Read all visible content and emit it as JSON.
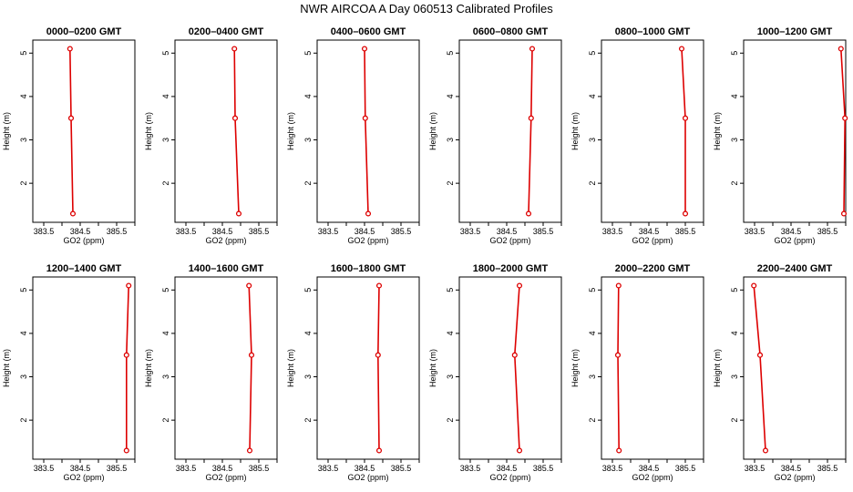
{
  "figure": {
    "title": "NWR AIRCOA A  Day 060513  Calibrated Profiles"
  },
  "chart_data": [
    {
      "type": "line",
      "title": "0000–0200 GMT",
      "xlabel": "GO2 (ppm)",
      "ylabel": "Height (m)",
      "xlim": [
        383.2,
        386.0
      ],
      "ylim": [
        1.1,
        5.3
      ],
      "xticks": [
        383.5,
        384.0,
        384.5,
        385.0,
        385.5,
        386.0
      ],
      "xtick_labels": [
        "383.5",
        "",
        "384.5",
        "",
        "385.5",
        ""
      ],
      "yticks": [
        2,
        3,
        4,
        5
      ],
      "ytick_labels": [
        "2",
        "3",
        "4",
        "5"
      ],
      "points": [
        {
          "x": 384.3,
          "y": 1.3
        },
        {
          "x": 384.25,
          "y": 3.5
        },
        {
          "x": 384.22,
          "y": 5.1
        }
      ]
    },
    {
      "type": "line",
      "title": "0200–0400 GMT",
      "xlabel": "GO2 (ppm)",
      "ylabel": "Height (m)",
      "xlim": [
        383.2,
        386.0
      ],
      "ylim": [
        1.1,
        5.3
      ],
      "xticks": [
        383.5,
        384.0,
        384.5,
        385.0,
        385.5,
        386.0
      ],
      "xtick_labels": [
        "383.5",
        "",
        "384.5",
        "",
        "385.5",
        ""
      ],
      "yticks": [
        2,
        3,
        4,
        5
      ],
      "ytick_labels": [
        "2",
        "3",
        "4",
        "5"
      ],
      "points": [
        {
          "x": 384.95,
          "y": 1.3
        },
        {
          "x": 384.85,
          "y": 3.5
        },
        {
          "x": 384.83,
          "y": 5.1
        }
      ]
    },
    {
      "type": "line",
      "title": "0400–0600 GMT",
      "xlabel": "GO2 (ppm)",
      "ylabel": "Height (m)",
      "xlim": [
        383.2,
        386.0
      ],
      "ylim": [
        1.1,
        5.3
      ],
      "xticks": [
        383.5,
        384.0,
        384.5,
        385.0,
        385.5,
        386.0
      ],
      "xtick_labels": [
        "383.5",
        "",
        "384.5",
        "",
        "385.5",
        ""
      ],
      "yticks": [
        2,
        3,
        4,
        5
      ],
      "ytick_labels": [
        "2",
        "3",
        "4",
        "5"
      ],
      "points": [
        {
          "x": 384.6,
          "y": 1.3
        },
        {
          "x": 384.52,
          "y": 3.5
        },
        {
          "x": 384.5,
          "y": 5.1
        }
      ]
    },
    {
      "type": "line",
      "title": "0600–0800 GMT",
      "xlabel": "GO2 (ppm)",
      "ylabel": "Height (m)",
      "xlim": [
        383.2,
        386.0
      ],
      "ylim": [
        1.1,
        5.3
      ],
      "xticks": [
        383.5,
        384.0,
        384.5,
        385.0,
        385.5,
        386.0
      ],
      "xtick_labels": [
        "383.5",
        "",
        "384.5",
        "",
        "385.5",
        ""
      ],
      "yticks": [
        2,
        3,
        4,
        5
      ],
      "ytick_labels": [
        "2",
        "3",
        "4",
        "5"
      ],
      "points": [
        {
          "x": 385.1,
          "y": 1.3
        },
        {
          "x": 385.17,
          "y": 3.5
        },
        {
          "x": 385.2,
          "y": 5.1
        }
      ]
    },
    {
      "type": "line",
      "title": "0800–1000 GMT",
      "xlabel": "GO2 (ppm)",
      "ylabel": "Height (m)",
      "xlim": [
        383.2,
        386.0
      ],
      "ylim": [
        1.1,
        5.3
      ],
      "xticks": [
        383.5,
        384.0,
        384.5,
        385.0,
        385.5,
        386.0
      ],
      "xtick_labels": [
        "383.5",
        "",
        "384.5",
        "",
        "385.5",
        ""
      ],
      "yticks": [
        2,
        3,
        4,
        5
      ],
      "ytick_labels": [
        "2",
        "3",
        "4",
        "5"
      ],
      "points": [
        {
          "x": 385.5,
          "y": 1.3
        },
        {
          "x": 385.5,
          "y": 3.5
        },
        {
          "x": 385.4,
          "y": 5.1
        }
      ]
    },
    {
      "type": "line",
      "title": "1000–1200 GMT",
      "xlabel": "GO2 (ppm)",
      "ylabel": "Height (m)",
      "xlim": [
        383.2,
        386.0
      ],
      "ylim": [
        1.1,
        5.3
      ],
      "xticks": [
        383.5,
        384.0,
        384.5,
        385.0,
        385.5,
        386.0
      ],
      "xtick_labels": [
        "383.5",
        "",
        "384.5",
        "",
        "385.5",
        ""
      ],
      "yticks": [
        2,
        3,
        4,
        5
      ],
      "ytick_labels": [
        "2",
        "3",
        "4",
        "5"
      ],
      "points": [
        {
          "x": 385.95,
          "y": 1.3
        },
        {
          "x": 385.98,
          "y": 3.5
        },
        {
          "x": 385.87,
          "y": 5.1
        }
      ]
    },
    {
      "type": "line",
      "title": "1200–1400 GMT",
      "xlabel": "GO2 (ppm)",
      "ylabel": "Height (m)",
      "xlim": [
        383.2,
        386.0
      ],
      "ylim": [
        1.1,
        5.3
      ],
      "xticks": [
        383.5,
        384.0,
        384.5,
        385.0,
        385.5,
        386.0
      ],
      "xtick_labels": [
        "383.5",
        "",
        "384.5",
        "",
        "385.5",
        ""
      ],
      "yticks": [
        2,
        3,
        4,
        5
      ],
      "ytick_labels": [
        "2",
        "3",
        "4",
        "5"
      ],
      "points": [
        {
          "x": 385.77,
          "y": 1.3
        },
        {
          "x": 385.77,
          "y": 3.5
        },
        {
          "x": 385.83,
          "y": 5.1
        }
      ]
    },
    {
      "type": "line",
      "title": "1400–1600 GMT",
      "xlabel": "GO2 (ppm)",
      "ylabel": "Height (m)",
      "xlim": [
        383.2,
        386.0
      ],
      "ylim": [
        1.1,
        5.3
      ],
      "xticks": [
        383.5,
        384.0,
        384.5,
        385.0,
        385.5,
        386.0
      ],
      "xtick_labels": [
        "383.5",
        "",
        "384.5",
        "",
        "385.5",
        ""
      ],
      "yticks": [
        2,
        3,
        4,
        5
      ],
      "ytick_labels": [
        "2",
        "3",
        "4",
        "5"
      ],
      "points": [
        {
          "x": 385.25,
          "y": 1.3
        },
        {
          "x": 385.3,
          "y": 3.5
        },
        {
          "x": 385.23,
          "y": 5.1
        }
      ]
    },
    {
      "type": "line",
      "title": "1600–1800 GMT",
      "xlabel": "GO2 (ppm)",
      "ylabel": "Height (m)",
      "xlim": [
        383.2,
        386.0
      ],
      "ylim": [
        1.1,
        5.3
      ],
      "xticks": [
        383.5,
        384.0,
        384.5,
        385.0,
        385.5,
        386.0
      ],
      "xtick_labels": [
        "383.5",
        "",
        "384.5",
        "",
        "385.5",
        ""
      ],
      "yticks": [
        2,
        3,
        4,
        5
      ],
      "ytick_labels": [
        "2",
        "3",
        "4",
        "5"
      ],
      "points": [
        {
          "x": 384.9,
          "y": 1.3
        },
        {
          "x": 384.87,
          "y": 3.5
        },
        {
          "x": 384.9,
          "y": 5.1
        }
      ]
    },
    {
      "type": "line",
      "title": "1800–2000 GMT",
      "xlabel": "GO2 (ppm)",
      "ylabel": "Height (m)",
      "xlim": [
        383.2,
        386.0
      ],
      "ylim": [
        1.1,
        5.3
      ],
      "xticks": [
        383.5,
        384.0,
        384.5,
        385.0,
        385.5,
        386.0
      ],
      "xtick_labels": [
        "383.5",
        "",
        "384.5",
        "",
        "385.5",
        ""
      ],
      "yticks": [
        2,
        3,
        4,
        5
      ],
      "ytick_labels": [
        "2",
        "3",
        "4",
        "5"
      ],
      "points": [
        {
          "x": 384.85,
          "y": 1.3
        },
        {
          "x": 384.72,
          "y": 3.5
        },
        {
          "x": 384.85,
          "y": 5.1
        }
      ]
    },
    {
      "type": "line",
      "title": "2000–2200 GMT",
      "xlabel": "GO2 (ppm)",
      "ylabel": "Height (m)",
      "xlim": [
        383.2,
        386.0
      ],
      "ylim": [
        1.1,
        5.3
      ],
      "xticks": [
        383.5,
        384.0,
        384.5,
        385.0,
        385.5,
        386.0
      ],
      "xtick_labels": [
        "383.5",
        "",
        "384.5",
        "",
        "385.5",
        ""
      ],
      "yticks": [
        2,
        3,
        4,
        5
      ],
      "ytick_labels": [
        "2",
        "3",
        "4",
        "5"
      ],
      "points": [
        {
          "x": 383.68,
          "y": 1.3
        },
        {
          "x": 383.65,
          "y": 3.5
        },
        {
          "x": 383.67,
          "y": 5.1
        }
      ]
    },
    {
      "type": "line",
      "title": "2200–2400 GMT",
      "xlabel": "GO2 (ppm)",
      "ylabel": "Height (m)",
      "xlim": [
        383.2,
        386.0
      ],
      "ylim": [
        1.1,
        5.3
      ],
      "xticks": [
        383.5,
        384.0,
        384.5,
        385.0,
        385.5,
        386.0
      ],
      "xtick_labels": [
        "383.5",
        "",
        "384.5",
        "",
        "385.5",
        ""
      ],
      "yticks": [
        2,
        3,
        4,
        5
      ],
      "ytick_labels": [
        "2",
        "3",
        "4",
        "5"
      ],
      "points": [
        {
          "x": 383.8,
          "y": 1.3
        },
        {
          "x": 383.65,
          "y": 3.5
        },
        {
          "x": 383.48,
          "y": 5.1
        }
      ]
    }
  ],
  "colors": {
    "series": "#dd0000",
    "axis": "#000000"
  }
}
